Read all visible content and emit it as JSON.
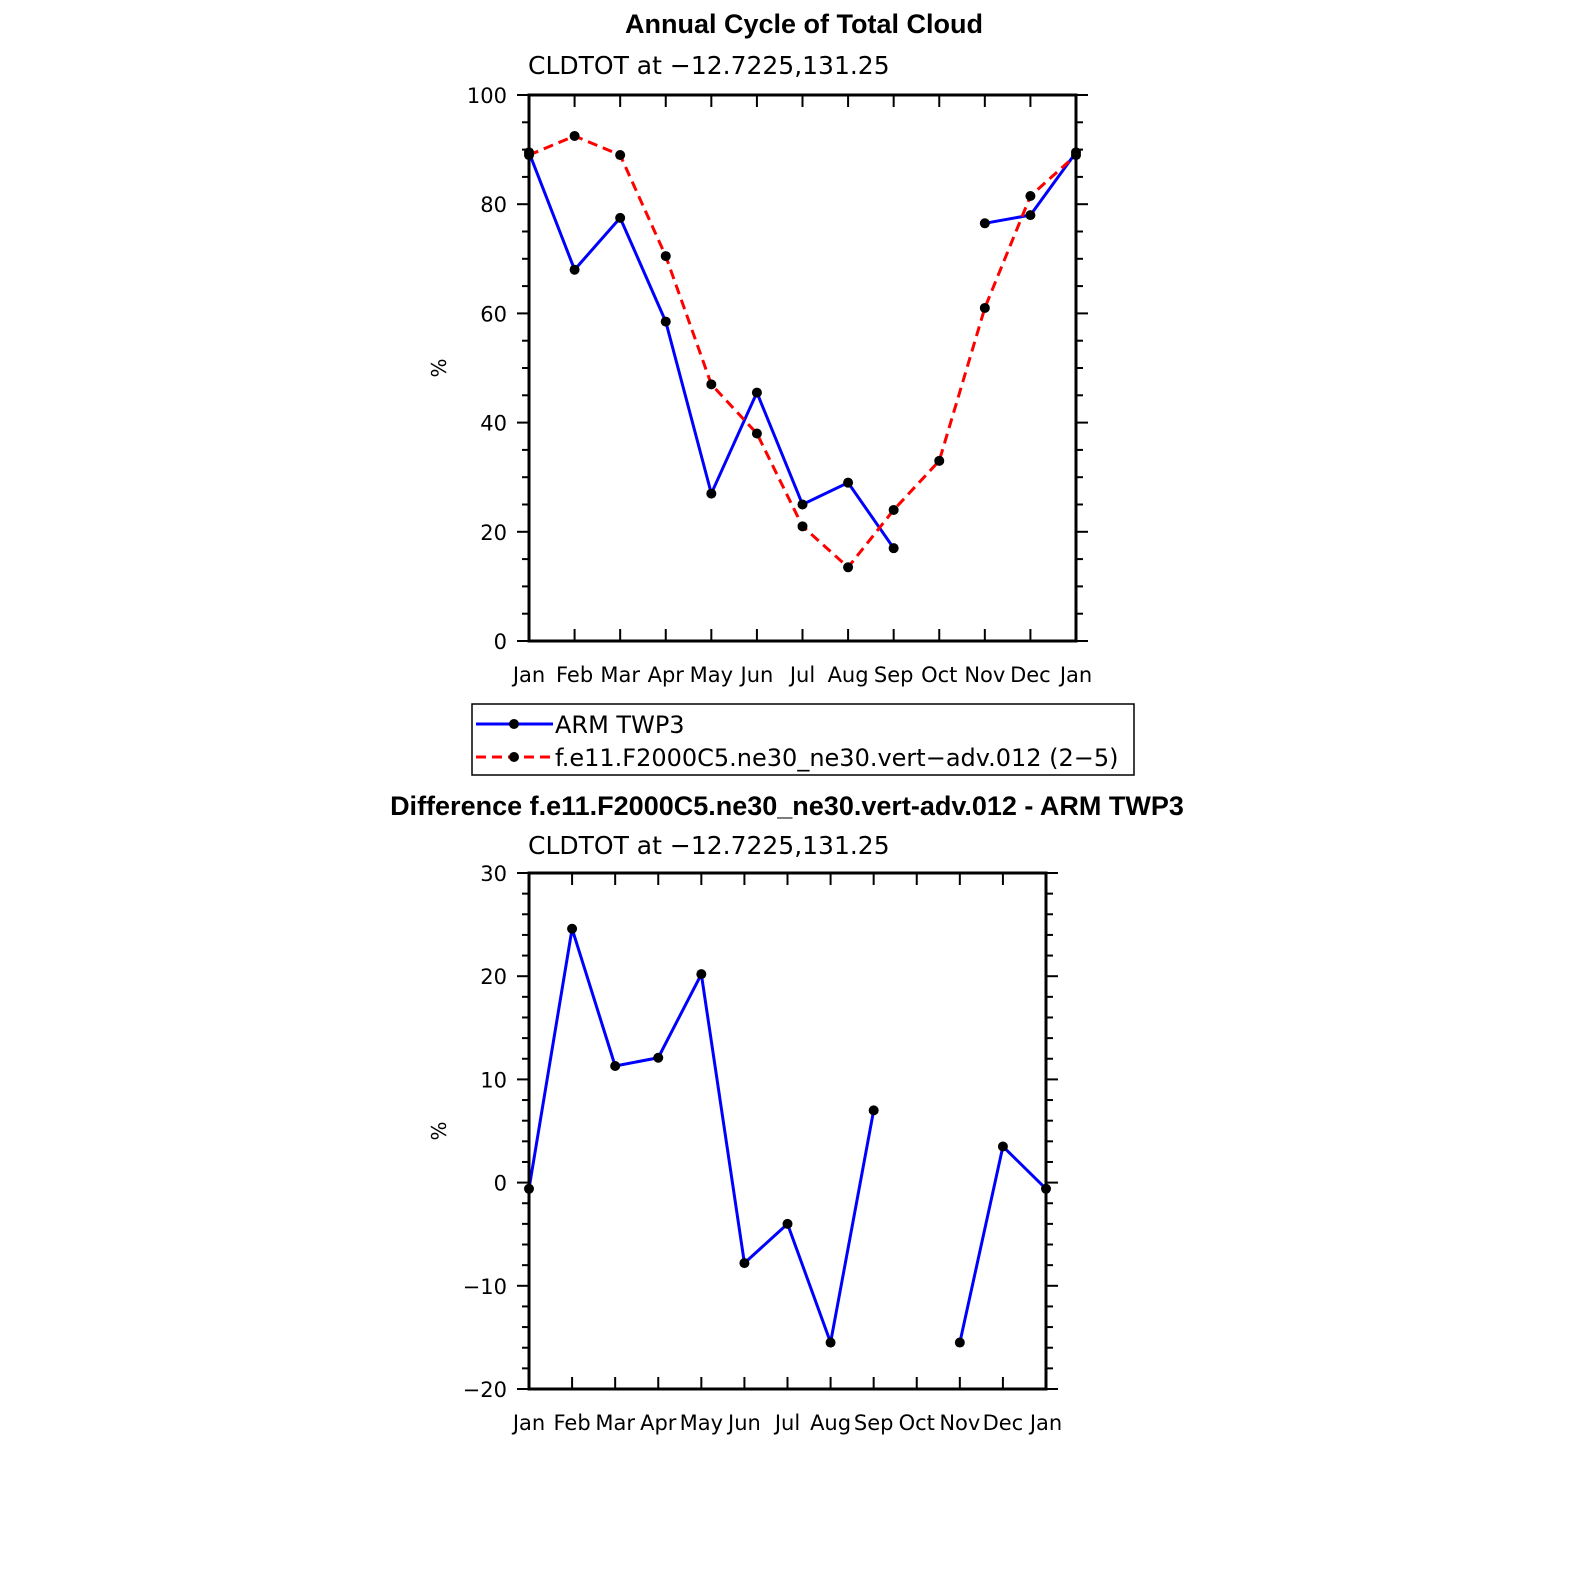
{
  "chart_data": [
    {
      "type": "line",
      "title": "Annual Cycle of Total Cloud",
      "subtitle": "CLDTOT at −12.7225,131.25",
      "xlabel": "",
      "ylabel": "%",
      "categories": [
        "Jan",
        "Feb",
        "Mar",
        "Apr",
        "May",
        "Jun",
        "Jul",
        "Aug",
        "Sep",
        "Oct",
        "Nov",
        "Dec",
        "Jan"
      ],
      "ylim": [
        0,
        100
      ],
      "yticks": [
        0,
        20,
        40,
        60,
        80,
        100
      ],
      "series": [
        {
          "name": "ARM TWP3",
          "color": "#0000ff",
          "dash": "solid",
          "values": [
            89.5,
            68.0,
            77.5,
            58.5,
            27.0,
            45.5,
            25.0,
            29.0,
            17.0,
            null,
            76.5,
            78.0,
            89.5
          ]
        },
        {
          "name": "f.e11.F2000C5.ne30_ne30.vert−adv.012 (2−5)",
          "color": "#ff0000",
          "dash": "dashed",
          "values": [
            89.0,
            92.5,
            89.0,
            70.5,
            47.0,
            38.0,
            21.0,
            13.5,
            24.0,
            33.0,
            61.0,
            81.5,
            89.0
          ]
        }
      ],
      "legend": "bottom"
    },
    {
      "type": "line",
      "title": "Difference f.e11.F2000C5.ne30_ne30.vert-adv.012 - ARM TWP3",
      "subtitle": "CLDTOT at −12.7225,131.25",
      "xlabel": "",
      "ylabel": "%",
      "categories": [
        "Jan",
        "Feb",
        "Mar",
        "Apr",
        "May",
        "Jun",
        "Jul",
        "Aug",
        "Sep",
        "Oct",
        "Nov",
        "Dec",
        "Jan"
      ],
      "ylim": [
        -20,
        30
      ],
      "yticks": [
        -20,
        -10,
        0,
        10,
        20,
        30
      ],
      "series": [
        {
          "color": "#0000ff",
          "dash": "solid",
          "values": [
            -0.6,
            24.6,
            11.3,
            12.1,
            20.2,
            -7.8,
            -4.0,
            -15.5,
            7.0,
            null,
            -15.5,
            3.5,
            -0.6
          ]
        }
      ]
    }
  ]
}
